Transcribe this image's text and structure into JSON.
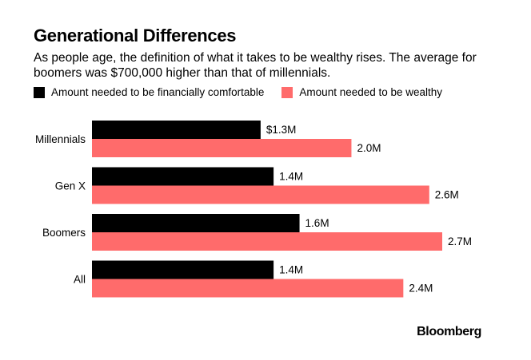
{
  "chart_data": {
    "type": "bar",
    "orientation": "horizontal",
    "title": "Generational Differences",
    "subtitle": "As people age, the definition of what it takes to be wealthy rises. The average for boomers was $700,000 higher than that of millennials.",
    "categories": [
      "Millennials",
      "Gen X",
      "Boomers",
      "All"
    ],
    "series": [
      {
        "name": "Amount needed to be financially comfortable",
        "color": "#000000",
        "values": [
          1.3,
          1.4,
          1.6,
          1.4
        ],
        "labels": [
          "$1.3M",
          "1.4M",
          "1.6M",
          "1.4M"
        ]
      },
      {
        "name": "Amount needed to be wealthy",
        "color": "#ff6b6b",
        "values": [
          2.0,
          2.6,
          2.7,
          2.4
        ],
        "labels": [
          "2.0M",
          "2.6M",
          "2.7M",
          "2.4M"
        ]
      }
    ],
    "xlim": [
      0,
      2.7
    ],
    "grid": false,
    "legend": "top-left"
  },
  "source": "Bloomberg"
}
